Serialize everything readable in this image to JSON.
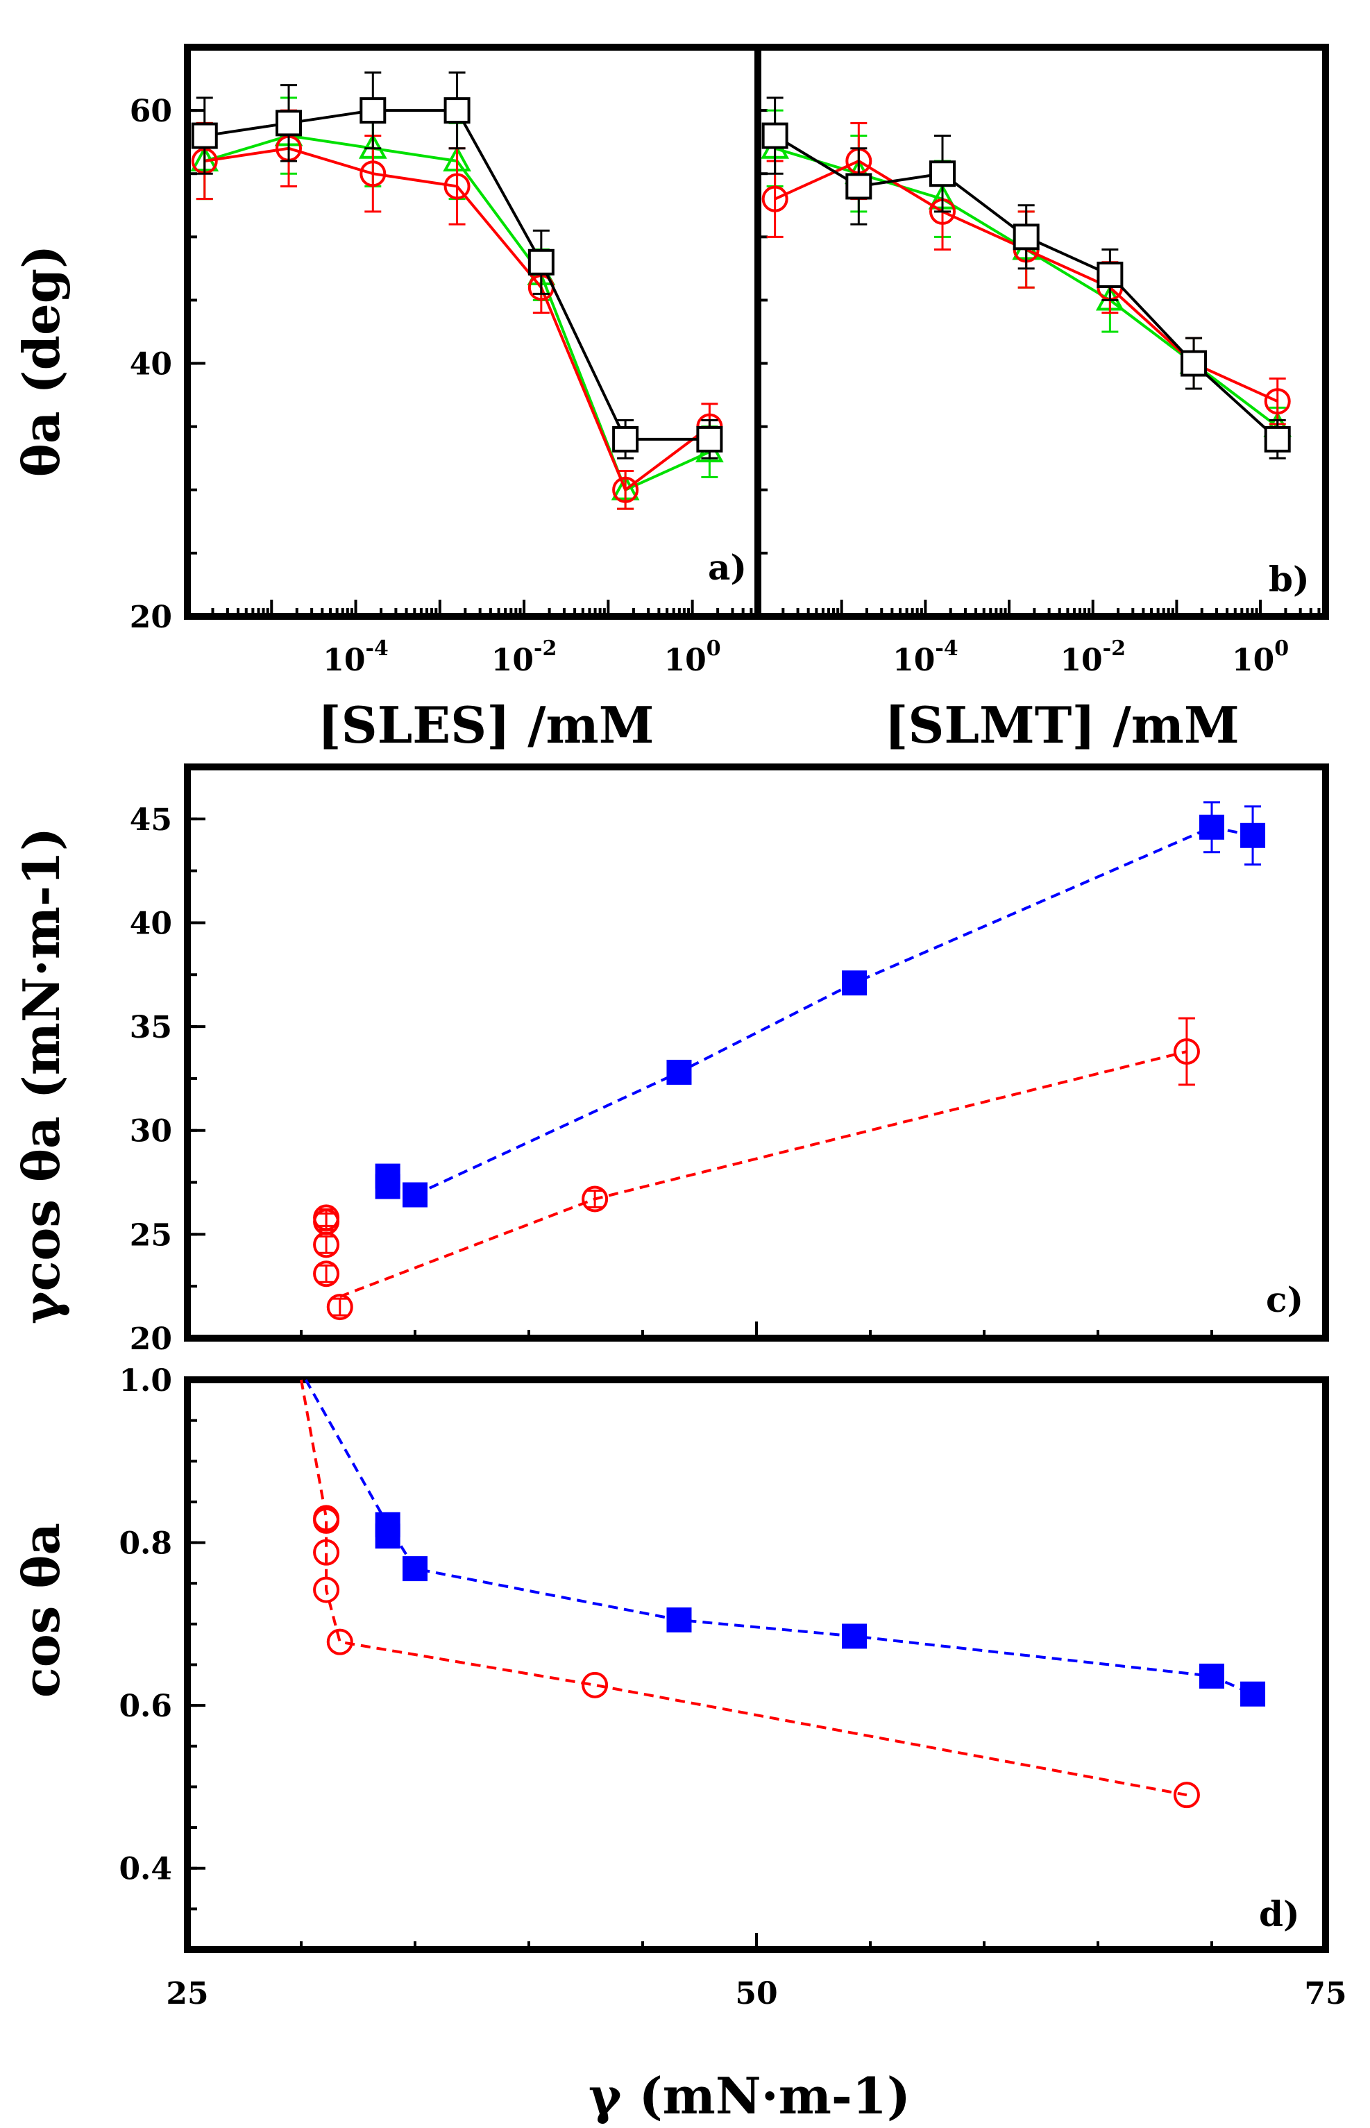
{
  "chart_data": [
    {
      "id": "a",
      "type": "line",
      "panel_label": "a)",
      "xlabel": "[SLES] /mM",
      "ylabel": "θa (deg)",
      "xscale": "log",
      "xlim": [
        1e-06,
        6
      ],
      "ylim": [
        20,
        65
      ],
      "x_ticks": [
        {
          "v": 0.0001,
          "label": "10-4"
        },
        {
          "v": 0.01,
          "label": "10-2"
        },
        {
          "v": 1,
          "label": "100"
        }
      ],
      "y_ticks": [
        {
          "v": 20,
          "label": "20"
        },
        {
          "v": 40,
          "label": "40"
        },
        {
          "v": 60,
          "label": "60"
        }
      ],
      "series": [
        {
          "name": "green",
          "color": "#00e000",
          "marker": "triangle",
          "x": [
            1.6e-06,
            1.6e-05,
            0.00016,
            0.0016,
            0.016,
            0.16,
            1.6
          ],
          "y": [
            56,
            58,
            57,
            56,
            47,
            30,
            33
          ],
          "err": [
            3,
            3,
            3,
            3,
            2,
            1.5,
            2
          ]
        },
        {
          "name": "red",
          "color": "#ff0000",
          "marker": "circle",
          "x": [
            1.6e-06,
            1.6e-05,
            0.00016,
            0.0016,
            0.016,
            0.16,
            1.6
          ],
          "y": [
            56,
            57,
            55,
            54,
            46,
            30,
            35
          ],
          "err": [
            3,
            3,
            3,
            3,
            2,
            1.5,
            1.8
          ]
        },
        {
          "name": "black",
          "color": "#000000",
          "marker": "square",
          "x": [
            1.6e-06,
            1.6e-05,
            0.00016,
            0.0016,
            0.016,
            0.16,
            1.6
          ],
          "y": [
            58,
            59,
            60,
            60,
            48,
            34,
            34
          ],
          "err": [
            3,
            3,
            3,
            3,
            2.5,
            1.5,
            1.5
          ]
        }
      ]
    },
    {
      "id": "b",
      "type": "line",
      "panel_label": "b)",
      "xlabel": "[SLMT] /mM",
      "ylabel": "",
      "xscale": "log",
      "xlim": [
        1e-06,
        6
      ],
      "ylim": [
        20,
        65
      ],
      "x_ticks": [
        {
          "v": 0.0001,
          "label": "10-4"
        },
        {
          "v": 0.01,
          "label": "10-2"
        },
        {
          "v": 1,
          "label": "100"
        }
      ],
      "y_ticks": [],
      "series": [
        {
          "name": "green",
          "color": "#00e000",
          "marker": "triangle",
          "x": [
            1.6e-06,
            1.6e-05,
            0.00016,
            0.0016,
            0.016,
            0.16,
            1.6
          ],
          "y": [
            57,
            55,
            53,
            49,
            45,
            40,
            35
          ],
          "err": [
            3,
            3,
            3,
            3,
            2.5,
            2,
            1.5
          ]
        },
        {
          "name": "red",
          "color": "#ff0000",
          "marker": "circle",
          "x": [
            1.6e-06,
            1.6e-05,
            0.00016,
            0.0016,
            0.016,
            0.16,
            1.6
          ],
          "y": [
            53,
            56,
            52,
            49,
            46,
            40,
            37
          ],
          "err": [
            3,
            3,
            3,
            3,
            2,
            2,
            1.8
          ]
        },
        {
          "name": "black",
          "color": "#000000",
          "marker": "square",
          "x": [
            1.6e-06,
            1.6e-05,
            0.00016,
            0.0016,
            0.016,
            0.16,
            1.6
          ],
          "y": [
            58,
            54,
            55,
            50,
            47,
            40,
            34
          ],
          "err": [
            3,
            3,
            3,
            2.5,
            2,
            2,
            1.5
          ]
        }
      ]
    },
    {
      "id": "c",
      "type": "scatter",
      "panel_label": "c)",
      "xlabel": "",
      "ylabel": "γcos θa (mN·m-1)",
      "xlim": [
        25,
        75
      ],
      "ylim": [
        20,
        47.5
      ],
      "x_ticks": [],
      "y_ticks": [
        {
          "v": 20,
          "label": "20"
        },
        {
          "v": 25,
          "label": "25"
        },
        {
          "v": 30,
          "label": "30"
        },
        {
          "v": 35,
          "label": "35"
        },
        {
          "v": 40,
          "label": "40"
        },
        {
          "v": 45,
          "label": "45"
        }
      ],
      "series": [
        {
          "name": "blue",
          "color": "#0000ff",
          "marker": "filled-square",
          "x": [
            33.8,
            33.8,
            35.0,
            46.6,
            54.3,
            70.0,
            71.8
          ],
          "y": [
            27.8,
            27.3,
            26.9,
            32.8,
            37.1,
            44.6,
            44.2
          ],
          "err": [
            0.4,
            0.4,
            0.3,
            0.3,
            0.5,
            1.2,
            1.4
          ],
          "fit": {
            "x": [
              35.0,
              46.6,
              54.3,
              70.0,
              71.8
            ],
            "y": [
              26.9,
              32.8,
              37.1,
              44.6,
              44.2
            ]
          }
        },
        {
          "name": "red",
          "color": "#ff0000",
          "marker": "circle",
          "x": [
            31.1,
            31.1,
            31.1,
            31.1,
            31.7,
            42.9,
            68.9
          ],
          "y": [
            25.8,
            25.6,
            24.5,
            23.1,
            21.5,
            26.7,
            33.8
          ],
          "err": [
            0.4,
            0.4,
            0.4,
            0.4,
            0.4,
            0.4,
            1.6
          ],
          "fit": {
            "x": [
              31.7,
              42.9,
              68.9
            ],
            "y": [
              22.0,
              26.7,
              33.8
            ]
          }
        }
      ]
    },
    {
      "id": "d",
      "type": "scatter",
      "panel_label": "d)",
      "xlabel": "γ (mN·m-1)",
      "ylabel": "cos θa",
      "xlim": [
        25,
        75
      ],
      "ylim": [
        0.3,
        1.0
      ],
      "x_ticks": [
        {
          "v": 25,
          "label": "25"
        },
        {
          "v": 50,
          "label": "50"
        },
        {
          "v": 75,
          "label": "75"
        }
      ],
      "y_ticks": [
        {
          "v": 0.4,
          "label": "0.4"
        },
        {
          "v": 0.6,
          "label": "0.6"
        },
        {
          "v": 0.8,
          "label": "0.8"
        },
        {
          "v": 1.0,
          "label": "1.0"
        }
      ],
      "series": [
        {
          "name": "blue",
          "color": "#0000ff",
          "marker": "filled-square",
          "x": [
            33.8,
            33.8,
            35.0,
            46.6,
            54.3,
            70.0,
            71.8
          ],
          "y": [
            0.822,
            0.808,
            0.768,
            0.705,
            0.685,
            0.636,
            0.614
          ],
          "fit": {
            "x": [
              30.2,
              33.8,
              35.0,
              46.6,
              54.3,
              70.0,
              71.8
            ],
            "y": [
              1.0,
              0.822,
              0.768,
              0.705,
              0.685,
              0.636,
              0.614
            ]
          }
        },
        {
          "name": "red",
          "color": "#ff0000",
          "marker": "circle",
          "x": [
            31.1,
            31.1,
            31.1,
            31.1,
            31.7,
            42.9,
            68.9
          ],
          "y": [
            0.83,
            0.827,
            0.788,
            0.742,
            0.678,
            0.625,
            0.49
          ],
          "fit": {
            "x": [
              30.0,
              31.1,
              31.1,
              31.7,
              42.9,
              68.9
            ],
            "y": [
              1.0,
              0.83,
              0.742,
              0.678,
              0.625,
              0.49
            ]
          }
        }
      ]
    }
  ]
}
